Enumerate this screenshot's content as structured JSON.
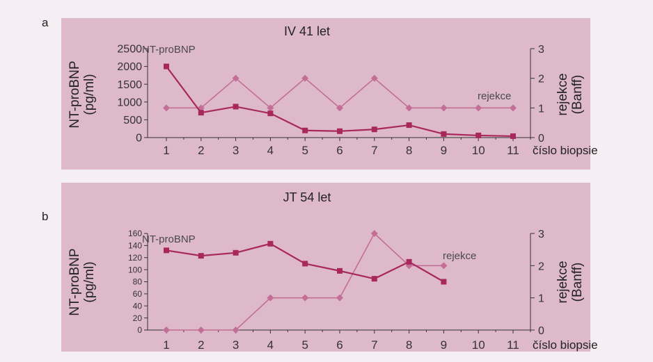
{
  "panels": [
    {
      "letter": "a",
      "title": "IV 41 let",
      "ylabel_left": "NT-proBNP (pg/ml)",
      "ylabel_right": "rejekce (Banff)",
      "xlabel": "číslo biopsie"
    },
    {
      "letter": "b",
      "title": "JT 54 let",
      "ylabel_left": "NT-proBNP (pg/ml)",
      "ylabel_right": "rejekce (Banff)",
      "xlabel": "číslo biopsie"
    }
  ],
  "chart_data": [
    {
      "type": "line",
      "title": "IV 41 let",
      "xlabel": "číslo biopsie",
      "ylabel": "NT-proBNP (pg/ml)",
      "y2label": "rejekce (Banff)",
      "x": [
        1,
        2,
        3,
        4,
        5,
        6,
        7,
        8,
        9,
        10,
        11
      ],
      "ylim": [
        0,
        2500
      ],
      "yticks": [
        0,
        500,
        1000,
        1500,
        2000,
        2500
      ],
      "y2lim": [
        0,
        3
      ],
      "y2ticks": [
        0,
        1,
        2,
        3
      ],
      "series": [
        {
          "name": "NT-proBNP",
          "axis": "left",
          "marker": "square",
          "color": "#a8285c",
          "values": [
            2000,
            700,
            870,
            680,
            200,
            180,
            230,
            350,
            100,
            60,
            40
          ]
        },
        {
          "name": "rejekce",
          "axis": "right",
          "marker": "diamond",
          "color": "#c26e96",
          "values": [
            1,
            1,
            2,
            1,
            2,
            1,
            2,
            1,
            1,
            1,
            1
          ]
        }
      ]
    },
    {
      "type": "line",
      "title": "JT 54 let",
      "xlabel": "číslo biopsie",
      "ylabel": "NT-proBNP (pg/ml)",
      "y2label": "rejekce (Banff)",
      "x": [
        1,
        2,
        3,
        4,
        5,
        6,
        7,
        8,
        9,
        10,
        11
      ],
      "ylim": [
        0,
        160
      ],
      "yticks": [
        0,
        20,
        40,
        60,
        80,
        100,
        120,
        140,
        160
      ],
      "y2lim": [
        0,
        3
      ],
      "y2ticks": [
        0,
        1,
        2,
        3
      ],
      "series": [
        {
          "name": "NT-proBNP",
          "axis": "left",
          "marker": "square",
          "color": "#a8285c",
          "values": [
            132,
            123,
            128,
            143,
            110,
            98,
            85,
            113,
            80,
            null,
            null
          ]
        },
        {
          "name": "rejekce",
          "axis": "right",
          "marker": "diamond",
          "color": "#c26e96",
          "values": [
            0,
            0,
            0,
            1,
            1,
            1,
            3,
            2,
            2,
            null,
            null
          ]
        }
      ]
    }
  ]
}
